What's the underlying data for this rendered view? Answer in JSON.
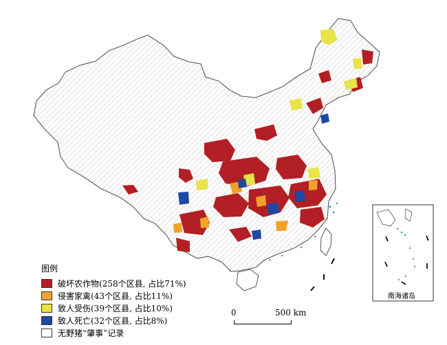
{
  "legend": {
    "title": "图例",
    "items": [
      {
        "label": "破坏农作物(258个区县, 占比71%)",
        "color": "#b21f24"
      },
      {
        "label": "侵害家禽(43个区县, 占比11%)",
        "color": "#f2a22a"
      },
      {
        "label": "致人受伤(39个区县, 占比10%)",
        "color": "#e8e34a"
      },
      {
        "label": "致人死亡(32个区县, 占比8%)",
        "color": "#1f48a3"
      },
      {
        "label": "无野猪“肇事”记录",
        "color": "#ffffff"
      }
    ]
  },
  "scale": {
    "zero": "0",
    "right": "500 km"
  },
  "inset": {
    "label": "南海诸岛"
  },
  "colors": {
    "boundary": "#666666",
    "background": "#ffffff",
    "water": "#2e8acb",
    "inset_border": "#333333"
  }
}
